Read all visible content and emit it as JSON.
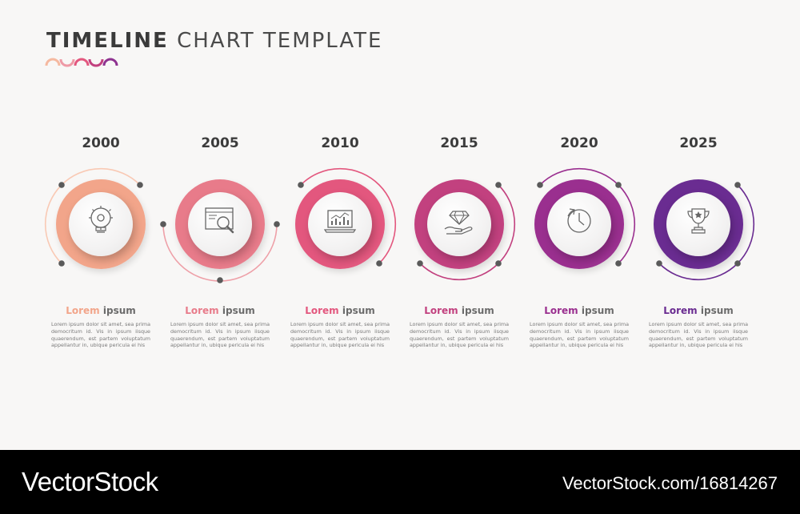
{
  "title": {
    "bold": "TIMELINE",
    "light": "CHART TEMPLATE"
  },
  "steps": [
    {
      "year": "2000",
      "accent": "#f2a58a",
      "ring": "#f9c9b4",
      "icon": "lightbulb-gear-icon",
      "h1": "Lorem",
      "h2": "ipsum",
      "text": "Lorem ipsum dolor sit amet, sea prima democritum id. Vis in ipsum iisque quaerendum, est partem voluptatum appellantur in, ubique pericula ei his"
    },
    {
      "year": "2005",
      "accent": "#e87b8a",
      "ring": "#eea0a8",
      "icon": "browser-magnifier-icon",
      "h1": "Lorem",
      "h2": "ipsum",
      "text": "Lorem ipsum dolor sit amet, sea prima democritum id. Vis in ipsum iisque quaerendum, est partem voluptatum appellantur in, ubique pericula ei his"
    },
    {
      "year": "2010",
      "accent": "#e3577e",
      "ring": "#e3577e",
      "icon": "laptop-chart-icon",
      "h1": "Lorem",
      "h2": "ipsum",
      "text": "Lorem ipsum dolor sit amet, sea prima democritum id. Vis in ipsum iisque quaerendum, est partem voluptatum appellantur in, ubique pericula ei his"
    },
    {
      "year": "2015",
      "accent": "#c2417f",
      "ring": "#c2417f",
      "icon": "diamond-hand-icon",
      "h1": "Lorem",
      "h2": "ipsum",
      "text": "Lorem ipsum dolor sit amet, sea prima democritum id. Vis in ipsum iisque quaerendum, est partem voluptatum appellantur in, ubique pericula ei his"
    },
    {
      "year": "2020",
      "accent": "#9a2f8f",
      "ring": "#9a2f8f",
      "icon": "clock-icon",
      "h1": "Lorem",
      "h2": "ipsum",
      "text": "Lorem ipsum dolor sit amet, sea prima democritum id. Vis in ipsum iisque quaerendum, est partem voluptatum appellantur in, ubique pericula ei his"
    },
    {
      "year": "2025",
      "accent": "#6a2c91",
      "ring": "#6a2c91",
      "icon": "trophy-icon",
      "h1": "Lorem",
      "h2": "ipsum",
      "text": "Lorem ipsum dolor sit amet, sea prima democritum id. Vis in ipsum iisque quaerendum, est partem voluptatum appellantur in, ubique pericula ei his"
    }
  ],
  "footer": {
    "brand": "VectorStock",
    "url": "VectorStock.com/16814267"
  }
}
